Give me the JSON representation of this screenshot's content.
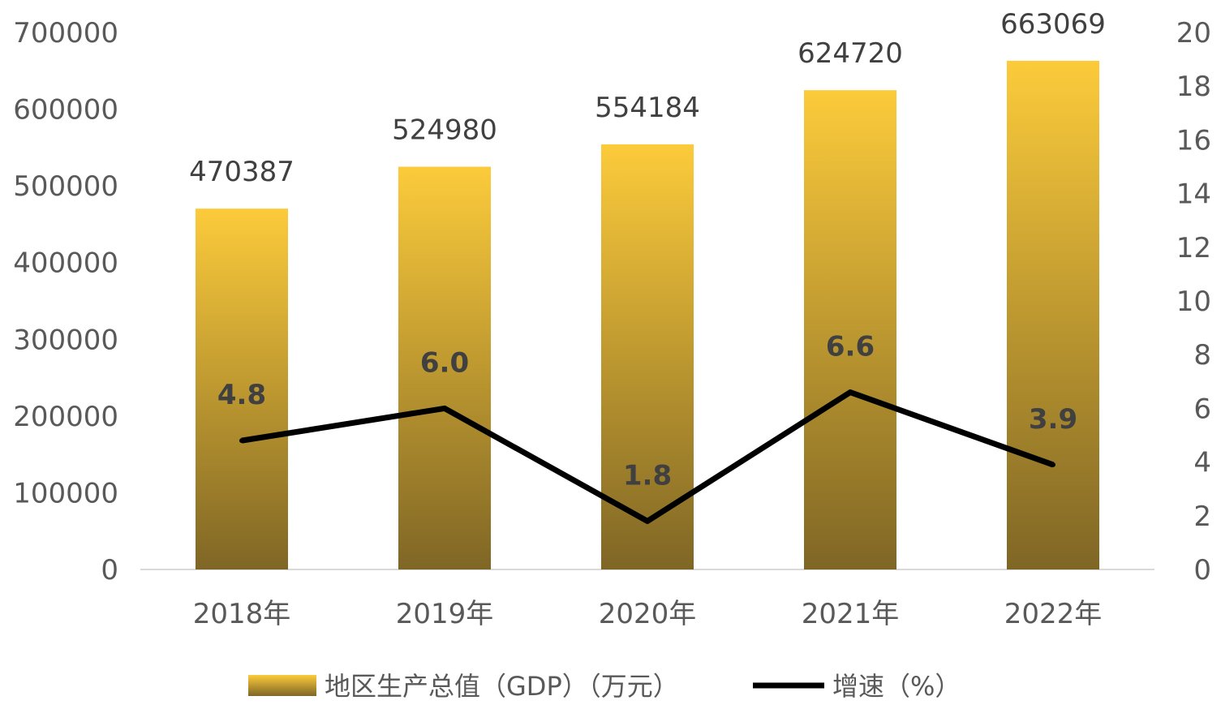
{
  "chart_data": {
    "type": "bar",
    "categories": [
      "2018年",
      "2019年",
      "2020年",
      "2021年",
      "2022年"
    ],
    "series": [
      {
        "name": "地区生产总值（GDP）（万元）",
        "type": "bar",
        "axis": "left",
        "values": [
          470387,
          524980,
          554184,
          624720,
          663069
        ],
        "color_top": "#FCCB3B",
        "color_bottom": "#7F6625"
      },
      {
        "name": "增速（%）",
        "type": "line",
        "axis": "right",
        "values": [
          4.8,
          6.0,
          1.8,
          6.6,
          3.9
        ],
        "color": "#000000"
      }
    ],
    "y_left": {
      "min": 0,
      "max": 700000,
      "step": 100000
    },
    "y_right": {
      "min": 0,
      "max": 20,
      "step": 2
    },
    "grid": false,
    "legend": "bottom"
  }
}
